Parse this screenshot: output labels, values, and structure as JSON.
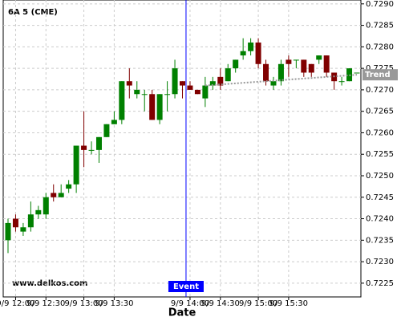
{
  "chart_data": {
    "type": "candlestick",
    "title": "6A 5 (CME)",
    "watermark": "www.delkos.com",
    "x_label": "Date",
    "categories": [
      null,
      "9/9 12:00",
      null,
      null,
      null,
      "9/9 12:30",
      null,
      null,
      null,
      null,
      "9/9 13:00",
      null,
      null,
      null,
      "9/9 13:30",
      null,
      null,
      null,
      null,
      null,
      null,
      null,
      null,
      null,
      "9/9 14:00",
      null,
      null,
      null,
      "9/9 14:30",
      null,
      null,
      null,
      null,
      "9/9 15:00",
      null,
      null,
      null,
      "9/9 15:30",
      null,
      null,
      null,
      null,
      null,
      null,
      null,
      null,
      null
    ],
    "open": [
      0.7235,
      0.724,
      0.7237,
      0.7238,
      0.7241,
      0.7241,
      0.7246,
      0.7245,
      0.7247,
      0.7248,
      0.7257,
      0.7256,
      0.7256,
      0.7259,
      0.7262,
      0.7263,
      0.7272,
      0.7269,
      0.7269,
      0.7269,
      0.7263,
      0.7269,
      0.7269,
      0.7272,
      0.7271,
      0.727,
      0.7268,
      0.7271,
      0.7273,
      0.7272,
      0.7275,
      0.7278,
      0.7279,
      0.7281,
      0.7276,
      0.7271,
      0.7272,
      0.7277,
      0.7277,
      0.7277,
      0.7276,
      0.7277,
      0.7278,
      0.7274,
      0.7272,
      0.7272,
      0.7274
    ],
    "high": [
      0.724,
      0.7241,
      0.7239,
      0.7244,
      0.7243,
      0.7246,
      0.7248,
      0.7248,
      0.7249,
      0.7257,
      0.7265,
      0.7258,
      0.7259,
      0.7262,
      0.7265,
      0.7272,
      0.7275,
      0.7272,
      0.727,
      0.727,
      0.7269,
      0.7272,
      0.7277,
      0.7272,
      0.7272,
      0.727,
      0.7273,
      0.7273,
      0.7275,
      0.7276,
      0.7277,
      0.7282,
      0.7282,
      0.7282,
      0.7277,
      0.7273,
      0.7277,
      0.7278,
      0.7277,
      0.7277,
      0.7276,
      0.7278,
      0.7278,
      0.7274,
      0.7273,
      0.7275,
      0.7274
    ],
    "low": [
      0.7232,
      0.7237,
      0.7236,
      0.7237,
      0.724,
      0.724,
      0.7244,
      0.7245,
      0.7246,
      0.7246,
      0.7252,
      0.7255,
      0.7253,
      0.7259,
      0.7262,
      0.7262,
      0.7268,
      0.7268,
      0.7265,
      0.7263,
      0.7262,
      0.7265,
      0.7268,
      0.7268,
      0.727,
      0.7269,
      0.7266,
      0.727,
      0.727,
      0.7272,
      0.7274,
      0.7277,
      0.7278,
      0.7275,
      0.7271,
      0.727,
      0.7271,
      0.7273,
      0.7275,
      0.7273,
      0.7273,
      0.7276,
      0.7273,
      0.727,
      0.7271,
      0.7272,
      0.7274
    ],
    "close": [
      0.7239,
      0.7238,
      0.7238,
      0.7241,
      0.7242,
      0.7245,
      0.7245,
      0.7246,
      0.7248,
      0.7257,
      0.7256,
      0.7256,
      0.7259,
      0.7262,
      0.7263,
      0.7272,
      0.7271,
      0.727,
      0.7269,
      0.7263,
      0.7269,
      0.7269,
      0.7275,
      0.7271,
      0.727,
      0.7269,
      0.7271,
      0.7272,
      0.7271,
      0.7275,
      0.7277,
      0.7279,
      0.7281,
      0.7276,
      0.7272,
      0.7272,
      0.7276,
      0.7276,
      0.7277,
      0.7274,
      0.7274,
      0.7278,
      0.7274,
      0.7272,
      0.7272,
      0.7275,
      0.7274
    ],
    "up_color": "#008000",
    "down_color": "#800000",
    "trend": {
      "name": "Trend",
      "color": "#999999",
      "values": [
        null,
        null,
        null,
        null,
        null,
        null,
        null,
        null,
        null,
        null,
        null,
        null,
        null,
        null,
        null,
        null,
        null,
        null,
        null,
        null,
        null,
        null,
        null,
        null,
        null,
        null,
        0.7271,
        null,
        null,
        null,
        null,
        null,
        null,
        null,
        null,
        null,
        null,
        null,
        null,
        null,
        null,
        null,
        null,
        null,
        null,
        null,
        0.72735
      ]
    },
    "event": {
      "label": "Event",
      "at": "9/9 14:00",
      "color": "#0000ff"
    },
    "ylim": [
      0.72218,
      0.72909
    ],
    "yticks": [
      {
        "value": 0.7225,
        "label": "0.7225"
      },
      {
        "value": 0.723,
        "label": "0.7230"
      },
      {
        "value": 0.7235,
        "label": "0.7235"
      },
      {
        "value": 0.724,
        "label": "0.7240"
      },
      {
        "value": 0.7245,
        "label": "0.7245"
      },
      {
        "value": 0.725,
        "label": "0.7250"
      },
      {
        "value": 0.7255,
        "label": "0.7255"
      },
      {
        "value": 0.726,
        "label": "0.7260"
      },
      {
        "value": 0.7265,
        "label": "0.7265"
      },
      {
        "value": 0.727,
        "label": "0.7270"
      },
      {
        "value": 0.7275,
        "label": "0.7275"
      },
      {
        "value": 0.728,
        "label": "0.7280"
      },
      {
        "value": 0.7285,
        "label": "0.7285"
      },
      {
        "value": 0.729,
        "label": "0.7290"
      }
    ],
    "grid": true
  }
}
